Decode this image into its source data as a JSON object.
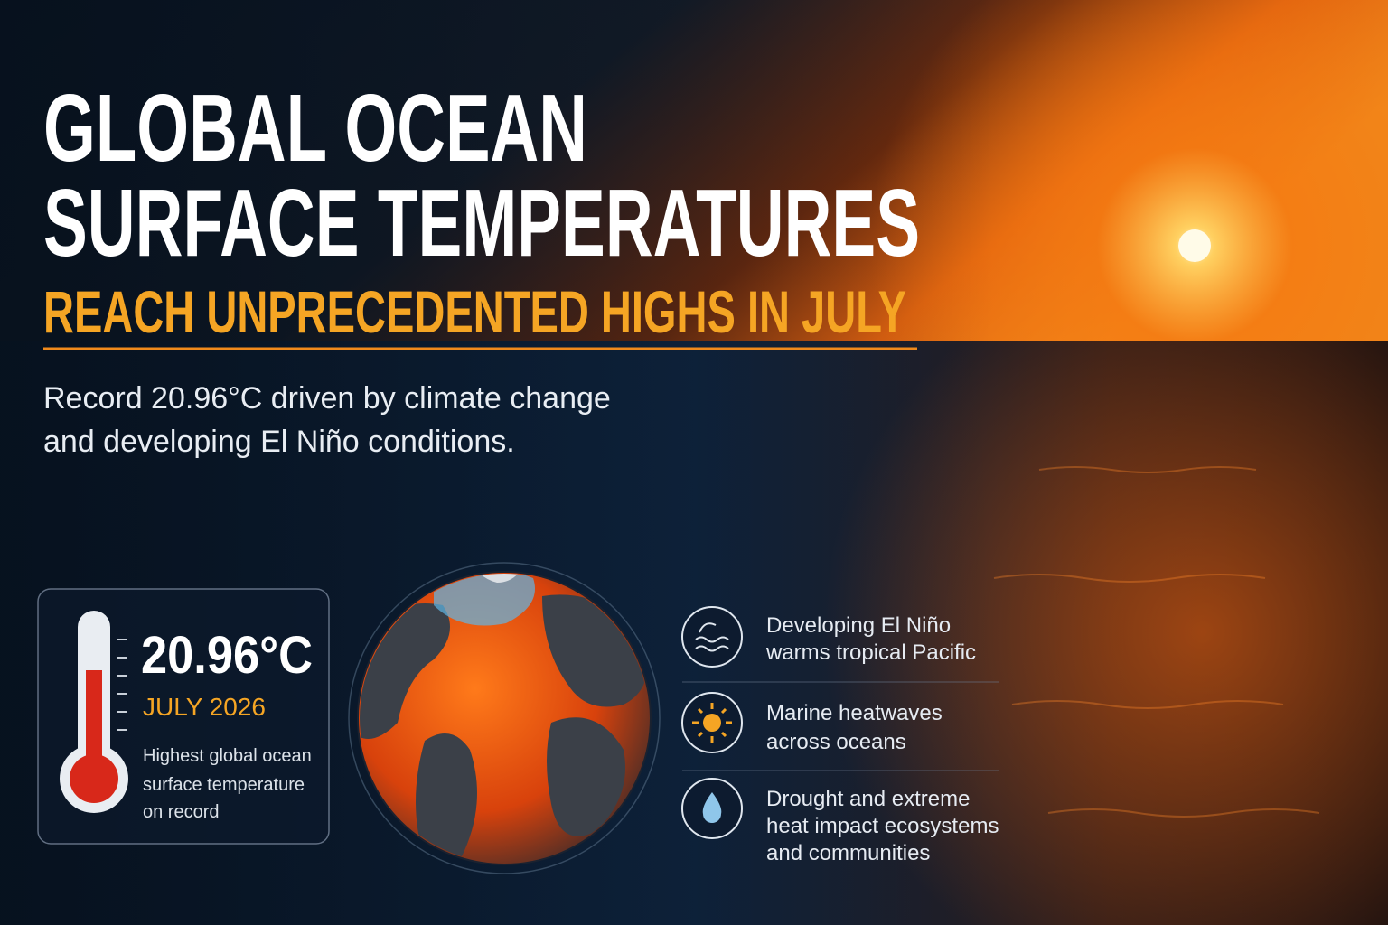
{
  "header": {
    "title_lines": [
      "GLOBAL OCEAN",
      "SURFACE TEMPERATURES"
    ],
    "subtitle": "REACH UNPRECEDENTED HIGHS IN JULY"
  },
  "description_lines": [
    "Record 20.96°C driven by climate change",
    "and developing El Niño conditions."
  ],
  "stat_card": {
    "value": "20.96°C",
    "date": "JULY 2026",
    "caption_lines": [
      "Highest global ocean",
      "surface temperature",
      "on record"
    ]
  },
  "impacts": [
    {
      "lines": [
        "Developing El Niño",
        "warms tropical Pacific"
      ]
    },
    {
      "lines": [
        "Marine heatwaves",
        "across oceans"
      ]
    },
    {
      "lines": [
        "Drought and extreme",
        "heat impact ecosystems",
        "and communities"
      ]
    }
  ]
}
